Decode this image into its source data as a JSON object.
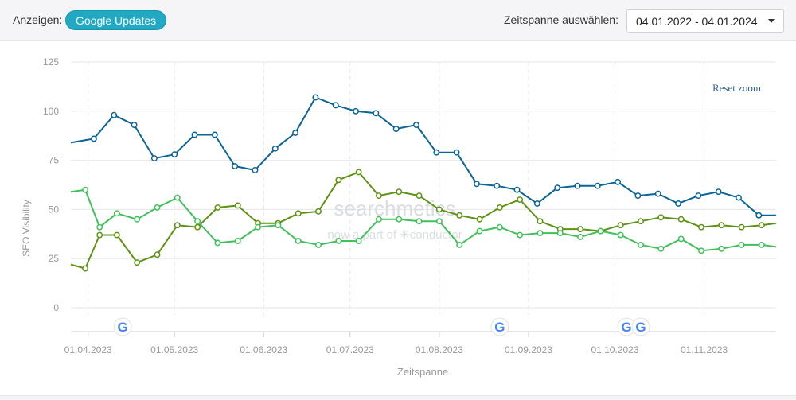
{
  "toolbar": {
    "show_label": "Anzeigen:",
    "google_updates_button": "Google Updates",
    "range_label": "Zeitspanne auswählen:",
    "range_value": "04.01.2022 - 04.01.2024"
  },
  "chart": {
    "reset_zoom": "Reset zoom",
    "watermark_main": "searchmetics",
    "watermark_sub": "now a part of ✳conductor"
  },
  "chart_data": {
    "type": "line",
    "ylabel": "SEO Visibility",
    "xlabel": "Zeitspanne",
    "ylim": [
      0,
      125
    ],
    "yticks": [
      0,
      25,
      50,
      75,
      100,
      125
    ],
    "xticks": [
      "01.04.2023",
      "01.05.2023",
      "01.06.2023",
      "01.07.2023",
      "01.08.2023",
      "01.09.2023",
      "01.10.2023",
      "01.11.2023"
    ],
    "x_range": [
      "2023-03-26",
      "2023-11-26"
    ],
    "grid": true,
    "google_update_dates": [
      "2023-04-13",
      "2023-08-22",
      "2023-10-05",
      "2023-10-10"
    ],
    "series": [
      {
        "color": "#0a6496",
        "x": [
          "2023-03-26",
          "2023-04-03",
          "2023-04-10",
          "2023-04-17",
          "2023-04-24",
          "2023-05-01",
          "2023-05-08",
          "2023-05-15",
          "2023-05-22",
          "2023-05-29",
          "2023-06-05",
          "2023-06-12",
          "2023-06-19",
          "2023-06-26",
          "2023-07-03",
          "2023-07-10",
          "2023-07-17",
          "2023-07-24",
          "2023-07-31",
          "2023-08-07",
          "2023-08-14",
          "2023-08-21",
          "2023-08-28",
          "2023-09-04",
          "2023-09-11",
          "2023-09-18",
          "2023-09-25",
          "2023-10-02",
          "2023-10-09",
          "2023-10-16",
          "2023-10-23",
          "2023-10-30",
          "2023-11-06",
          "2023-11-13",
          "2023-11-20",
          "2023-11-26"
        ],
        "values": [
          84,
          86,
          98,
          93,
          76,
          78,
          88,
          88,
          72,
          70,
          81,
          89,
          107,
          103,
          100,
          99,
          91,
          93,
          79,
          79,
          63,
          62,
          60,
          53,
          61,
          62,
          62,
          64,
          57,
          58,
          53,
          57,
          59,
          56,
          47,
          47
        ]
      },
      {
        "color": "#5e9212",
        "x": [
          "2023-03-26",
          "2023-03-31",
          "2023-04-05",
          "2023-04-11",
          "2023-04-18",
          "2023-04-25",
          "2023-05-02",
          "2023-05-09",
          "2023-05-16",
          "2023-05-23",
          "2023-05-30",
          "2023-06-06",
          "2023-06-13",
          "2023-06-20",
          "2023-06-27",
          "2023-07-04",
          "2023-07-11",
          "2023-07-18",
          "2023-07-25",
          "2023-08-01",
          "2023-08-08",
          "2023-08-15",
          "2023-08-22",
          "2023-08-29",
          "2023-09-05",
          "2023-09-12",
          "2023-09-19",
          "2023-09-26",
          "2023-10-03",
          "2023-10-10",
          "2023-10-17",
          "2023-10-24",
          "2023-10-31",
          "2023-11-07",
          "2023-11-14",
          "2023-11-21",
          "2023-11-26"
        ],
        "values": [
          22,
          20,
          37,
          37,
          23,
          27,
          42,
          41,
          51,
          52,
          43,
          43,
          48,
          49,
          65,
          69,
          57,
          59,
          57,
          50,
          47,
          45,
          51,
          55,
          44,
          40,
          40,
          39,
          42,
          44,
          46,
          45,
          41,
          42,
          41,
          42,
          43
        ]
      },
      {
        "color": "#3fc05a",
        "x": [
          "2023-03-26",
          "2023-03-31",
          "2023-04-05",
          "2023-04-11",
          "2023-04-18",
          "2023-04-25",
          "2023-05-02",
          "2023-05-09",
          "2023-05-16",
          "2023-05-23",
          "2023-05-30",
          "2023-06-06",
          "2023-06-13",
          "2023-06-20",
          "2023-06-27",
          "2023-07-04",
          "2023-07-11",
          "2023-07-18",
          "2023-07-25",
          "2023-08-01",
          "2023-08-08",
          "2023-08-15",
          "2023-08-22",
          "2023-08-29",
          "2023-09-05",
          "2023-09-12",
          "2023-09-19",
          "2023-09-26",
          "2023-10-03",
          "2023-10-10",
          "2023-10-17",
          "2023-10-24",
          "2023-10-31",
          "2023-11-07",
          "2023-11-14",
          "2023-11-21",
          "2023-11-26"
        ],
        "values": [
          59,
          60,
          41,
          48,
          45,
          51,
          56,
          44,
          33,
          34,
          41,
          42,
          34,
          32,
          34,
          34,
          45,
          45,
          44,
          44,
          32,
          39,
          41,
          37,
          38,
          38,
          36,
          39,
          37,
          32,
          30,
          35,
          29,
          30,
          32,
          32,
          31
        ]
      }
    ]
  }
}
